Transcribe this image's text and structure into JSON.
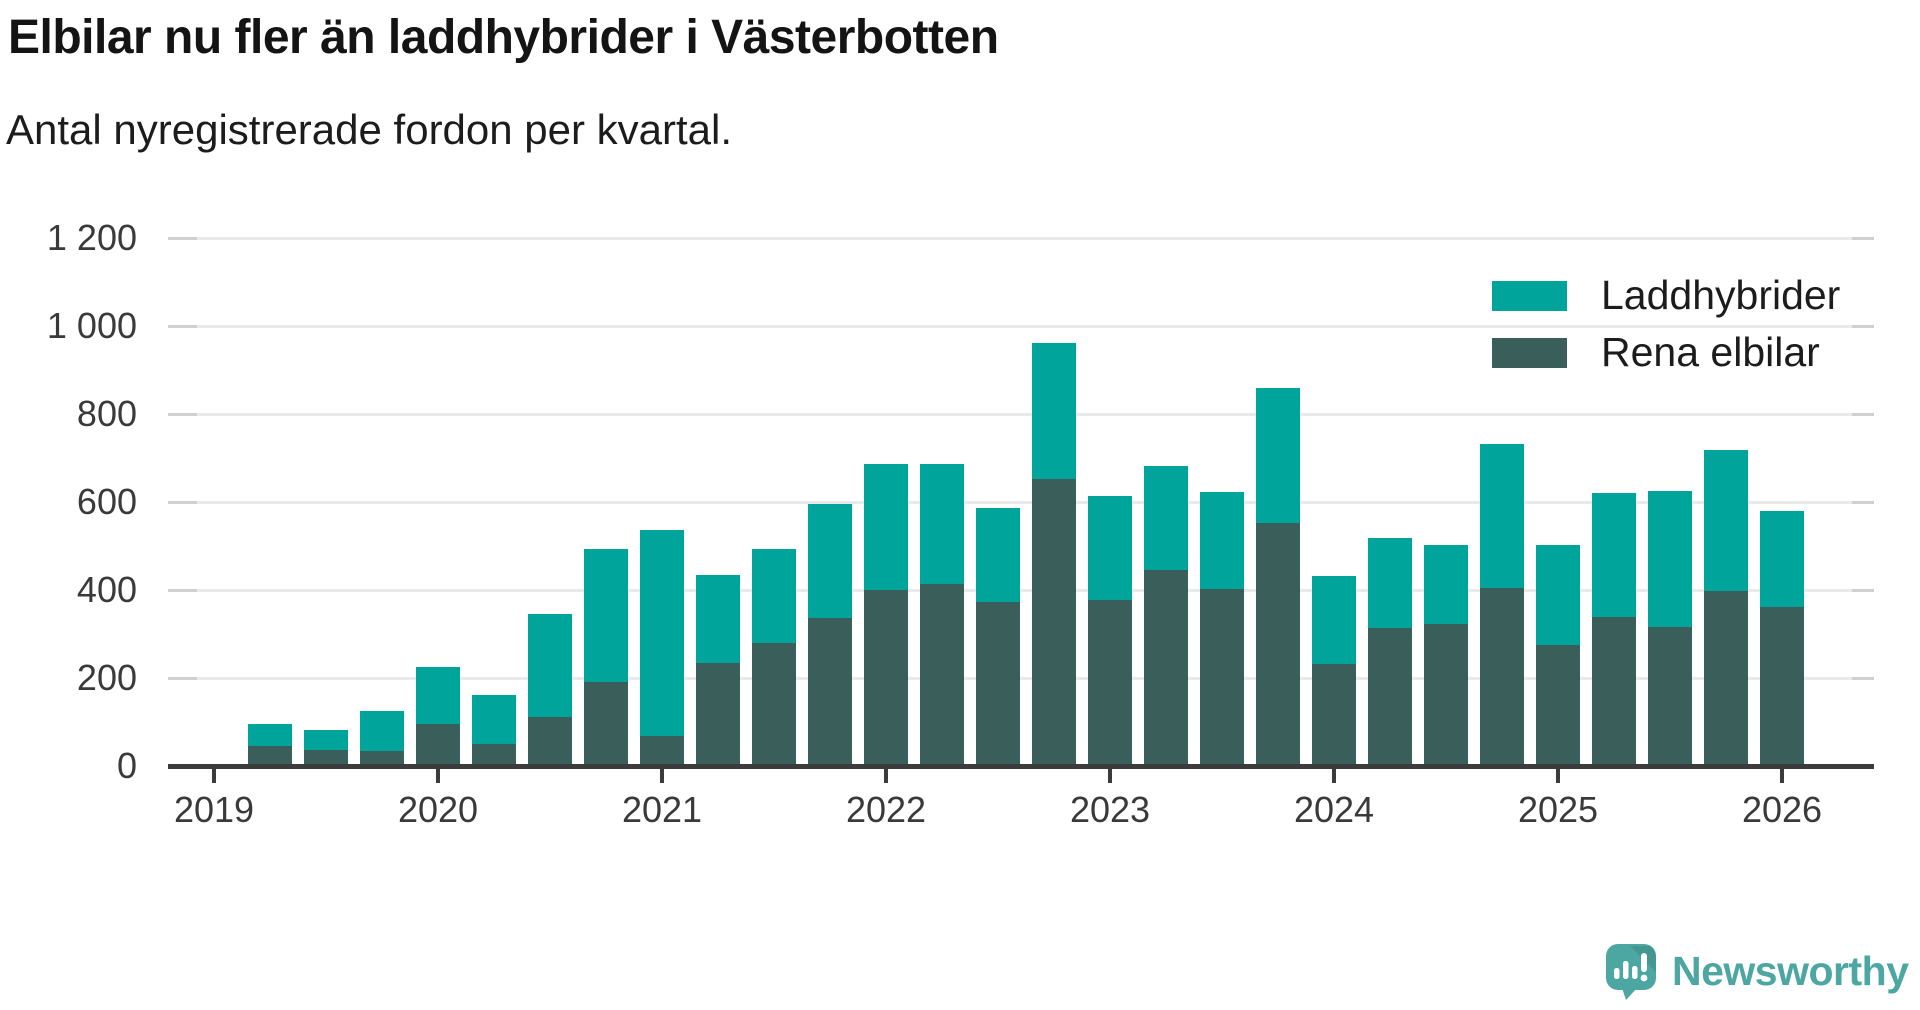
{
  "title": "Elbilar nu fler än laddhybrider i Västerbotten",
  "subtitle": "Antal nyregistrerade fordon per kvartal.",
  "colors": {
    "laddhybrider": "#00A49B",
    "rena_elbilar": "#3A5F5B",
    "logo": "#4CA7A2",
    "grid": "#EAEAEA",
    "grid_stub": "#D0D0D0",
    "axis": "#3B3B3B",
    "axis_text": "#3A3A3A",
    "text": "#1C1C1C"
  },
  "legend": {
    "items": [
      {
        "label": "Laddhybrider",
        "color": "#00A49B"
      },
      {
        "label": "Rena elbilar",
        "color": "#3A5F5B"
      }
    ]
  },
  "branding": {
    "logo_text": "Newsworthy",
    "logo_color": "#4CA7A2"
  },
  "chart_data": {
    "type": "bar",
    "stacked": true,
    "title": "Elbilar nu fler än laddhybrider i Västerbotten",
    "subtitle": "Antal nyregistrerade fordon per kvartal.",
    "grid": true,
    "legend_position": "top-right",
    "x_tick_labels": [
      "2019",
      "2020",
      "2021",
      "2022",
      "2023",
      "2024",
      "2025",
      "2026"
    ],
    "y_axis": {
      "min": 0,
      "max": 1200,
      "step": 200,
      "tick_labels": [
        "0",
        "200",
        "400",
        "600",
        "800",
        "1 000",
        "1 200"
      ]
    },
    "series": [
      {
        "name": "Laddhybrider",
        "color": "#00A49B",
        "stack_position": "top"
      },
      {
        "name": "Rena elbilar",
        "color": "#3A5F5B",
        "stack_position": "bottom"
      }
    ],
    "quarters": [
      {
        "year": 2019,
        "quarter": 2,
        "rena_elbilar": 45,
        "laddhybrider": 50
      },
      {
        "year": 2019,
        "quarter": 3,
        "rena_elbilar": 37,
        "laddhybrider": 45
      },
      {
        "year": 2019,
        "quarter": 4,
        "rena_elbilar": 35,
        "laddhybrider": 90
      },
      {
        "year": 2020,
        "quarter": 1,
        "rena_elbilar": 96,
        "laddhybrider": 130
      },
      {
        "year": 2020,
        "quarter": 2,
        "rena_elbilar": 50,
        "laddhybrider": 112
      },
      {
        "year": 2020,
        "quarter": 3,
        "rena_elbilar": 112,
        "laddhybrider": 233
      },
      {
        "year": 2020,
        "quarter": 4,
        "rena_elbilar": 192,
        "laddhybrider": 302
      },
      {
        "year": 2021,
        "quarter": 1,
        "rena_elbilar": 69,
        "laddhybrider": 468
      },
      {
        "year": 2021,
        "quarter": 2,
        "rena_elbilar": 235,
        "laddhybrider": 200
      },
      {
        "year": 2021,
        "quarter": 3,
        "rena_elbilar": 280,
        "laddhybrider": 214
      },
      {
        "year": 2021,
        "quarter": 4,
        "rena_elbilar": 337,
        "laddhybrider": 259
      },
      {
        "year": 2022,
        "quarter": 1,
        "rena_elbilar": 399,
        "laddhybrider": 288
      },
      {
        "year": 2022,
        "quarter": 2,
        "rena_elbilar": 414,
        "laddhybrider": 273
      },
      {
        "year": 2022,
        "quarter": 3,
        "rena_elbilar": 373,
        "laddhybrider": 214
      },
      {
        "year": 2022,
        "quarter": 4,
        "rena_elbilar": 652,
        "laddhybrider": 310
      },
      {
        "year": 2023,
        "quarter": 1,
        "rena_elbilar": 378,
        "laddhybrider": 235
      },
      {
        "year": 2023,
        "quarter": 2,
        "rena_elbilar": 446,
        "laddhybrider": 236
      },
      {
        "year": 2023,
        "quarter": 3,
        "rena_elbilar": 402,
        "laddhybrider": 220
      },
      {
        "year": 2023,
        "quarter": 4,
        "rena_elbilar": 552,
        "laddhybrider": 307
      },
      {
        "year": 2024,
        "quarter": 1,
        "rena_elbilar": 232,
        "laddhybrider": 200
      },
      {
        "year": 2024,
        "quarter": 2,
        "rena_elbilar": 313,
        "laddhybrider": 206
      },
      {
        "year": 2024,
        "quarter": 3,
        "rena_elbilar": 323,
        "laddhybrider": 180
      },
      {
        "year": 2024,
        "quarter": 4,
        "rena_elbilar": 405,
        "laddhybrider": 326
      },
      {
        "year": 2025,
        "quarter": 1,
        "rena_elbilar": 276,
        "laddhybrider": 227
      },
      {
        "year": 2025,
        "quarter": 2,
        "rena_elbilar": 339,
        "laddhybrider": 282
      },
      {
        "year": 2025,
        "quarter": 3,
        "rena_elbilar": 317,
        "laddhybrider": 308
      },
      {
        "year": 2025,
        "quarter": 4,
        "rena_elbilar": 397,
        "laddhybrider": 322
      },
      {
        "year": 2026,
        "quarter": 1,
        "rena_elbilar": 362,
        "laddhybrider": 218
      }
    ]
  }
}
